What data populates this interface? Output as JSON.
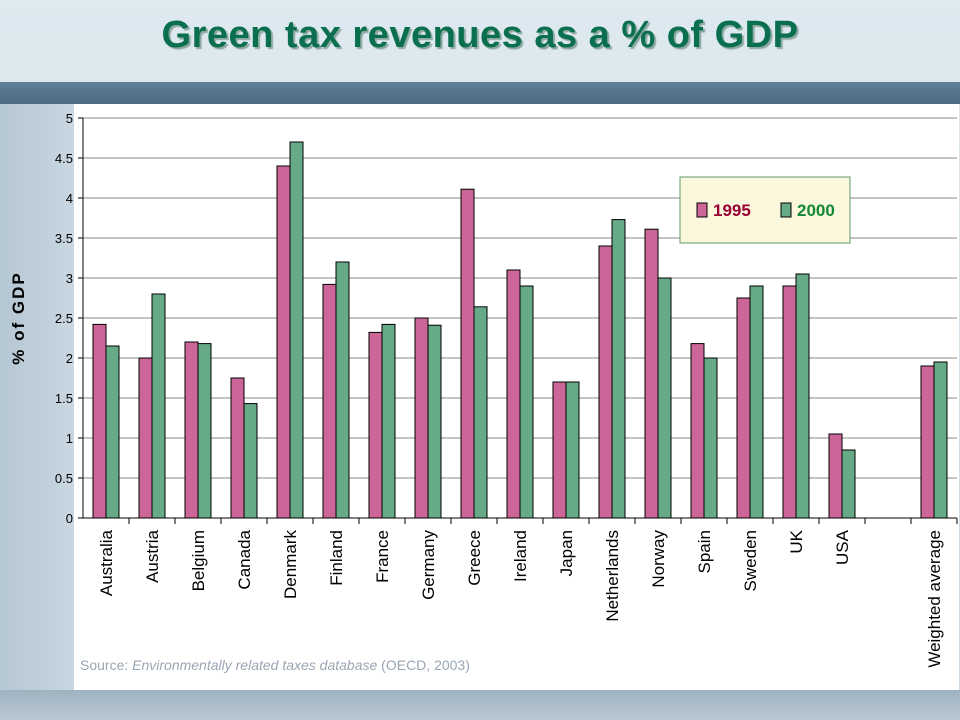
{
  "title": "Green tax revenues as a % of GDP",
  "source": {
    "prefix": "Source: ",
    "italic": "Environmentally related taxes database",
    "suffix": " (OECD, 2003)"
  },
  "colors": {
    "series_1995": "#cc6699",
    "series_2000": "#66aa88",
    "legend_1995_text": "#990033",
    "legend_2000_text": "#118833",
    "title": "#0a6f4e"
  },
  "chart_data": {
    "type": "bar",
    "ylabel": "% of GDP",
    "ylim": [
      0,
      5
    ],
    "yticks": [
      "0",
      "0.5",
      "1",
      "1.5",
      "2",
      "2.5",
      "3",
      "3.5",
      "4",
      "4.5",
      "5"
    ],
    "grid": true,
    "legend_position": "top-right",
    "categories": [
      "Australia",
      "Austria",
      "Belgium",
      "Canada",
      "Denmark",
      "Finland",
      "France",
      "Germany",
      "Greece",
      "Ireland",
      "Japan",
      "Netherlands",
      "Norway",
      "Spain",
      "Sweden",
      "UK",
      "USA",
      "",
      "Weighted average"
    ],
    "series": [
      {
        "name": "1995",
        "values": [
          2.42,
          2.0,
          2.2,
          1.75,
          4.4,
          2.92,
          2.32,
          2.5,
          4.11,
          3.1,
          1.7,
          3.4,
          3.61,
          2.18,
          2.75,
          2.9,
          1.05,
          null,
          1.9
        ]
      },
      {
        "name": "2000",
        "values": [
          2.15,
          2.8,
          2.18,
          1.43,
          4.7,
          3.2,
          2.42,
          2.41,
          2.64,
          2.9,
          1.7,
          3.73,
          3.0,
          2.0,
          2.9,
          3.05,
          0.85,
          null,
          1.95
        ]
      }
    ]
  }
}
